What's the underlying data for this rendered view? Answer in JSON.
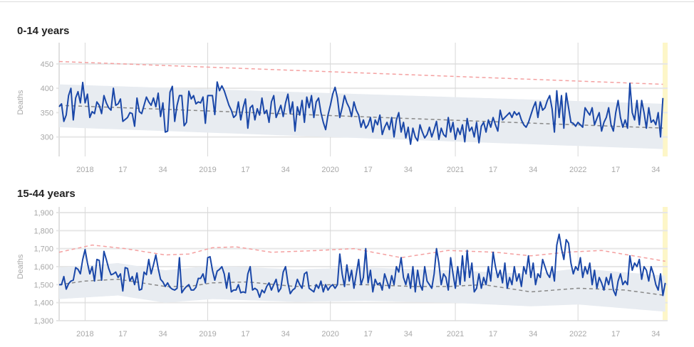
{
  "x_ticks": [
    {
      "week": 11,
      "label": "2018"
    },
    {
      "week": 27,
      "label": "17"
    },
    {
      "week": 44,
      "label": "34"
    },
    {
      "week": 63,
      "label": "2019"
    },
    {
      "week": 79,
      "label": "17"
    },
    {
      "week": 96,
      "label": "34"
    },
    {
      "week": 115,
      "label": "2020"
    },
    {
      "week": 131,
      "label": "17"
    },
    {
      "week": 148,
      "label": "34"
    },
    {
      "week": 168,
      "label": "2021"
    },
    {
      "week": 184,
      "label": "17"
    },
    {
      "week": 201,
      "label": "34"
    },
    {
      "week": 220,
      "label": "2022"
    },
    {
      "week": 236,
      "label": "17"
    },
    {
      "week": 253,
      "label": "34"
    }
  ],
  "colors": {
    "observed": "#1a47a8",
    "baseline": "#888888",
    "threshold": "#f4a0a0",
    "band": "#e8ecf1",
    "highlight": "#fdf6c8"
  },
  "chart_data": [
    {
      "type": "line",
      "title": "0-14 years",
      "ylabel": "Deaths",
      "ylim": [
        260,
        482
      ],
      "yticks": [
        {
          "v": 300,
          "label": "300"
        },
        {
          "v": 350,
          "label": "350"
        },
        {
          "v": 400,
          "label": "400"
        },
        {
          "v": 450,
          "label": "450"
        }
      ],
      "baseline": [
        [
          0,
          365
        ],
        [
          257,
          318
        ]
      ],
      "threshold": [
        [
          0,
          455
        ],
        [
          257,
          408
        ]
      ],
      "band_upper": [
        [
          0,
          408
        ],
        [
          257,
          368
        ]
      ],
      "band_lower": [
        [
          0,
          320
        ],
        [
          257,
          275
        ]
      ],
      "observed": [
        362,
        368,
        332,
        345,
        385,
        400,
        335,
        380,
        393,
        370,
        412,
        370,
        388,
        340,
        352,
        348,
        372,
        365,
        348,
        385,
        370,
        360,
        355,
        400,
        365,
        368,
        378,
        332,
        336,
        340,
        350,
        348,
        322,
        380,
        352,
        348,
        365,
        382,
        372,
        365,
        380,
        362,
        390,
        342,
        370,
        310,
        312,
        392,
        404,
        332,
        365,
        385,
        385,
        323,
        330,
        394,
        378,
        385,
        368,
        372,
        370,
        382,
        328,
        385,
        385,
        385,
        346,
        413,
        395,
        405,
        395,
        380,
        365,
        355,
        340,
        345,
        372,
        335,
        360,
        378,
        318,
        360,
        365,
        335,
        358,
        345,
        380,
        348,
        355,
        330,
        372,
        385,
        340,
        352,
        365,
        342,
        370,
        388,
        348,
        372,
        312,
        362,
        345,
        375,
        330,
        382,
        360,
        385,
        340,
        372,
        380,
        350,
        330,
        315,
        345,
        365,
        388,
        402,
        380,
        340,
        360,
        385,
        370,
        360,
        342,
        372,
        355,
        345,
        320,
        335,
        318,
        325,
        340,
        310,
        335,
        325,
        345,
        305,
        320,
        330,
        315,
        340,
        300,
        335,
        350,
        310,
        330,
        298,
        320,
        285,
        318,
        300,
        292,
        325,
        310,
        298,
        305,
        320,
        300,
        315,
        332,
        295,
        318,
        305,
        300,
        340,
        310,
        330,
        295,
        318,
        305,
        325,
        290,
        338,
        312,
        320,
        300,
        330,
        288,
        322,
        330,
        310,
        335,
        320,
        340,
        325,
        312,
        355,
        335,
        340,
        345,
        350,
        340,
        352,
        345,
        350,
        335,
        325,
        320,
        330,
        345,
        360,
        372,
        340,
        372,
        355,
        360,
        375,
        385,
        358,
        310,
        395,
        340,
        385,
        318,
        390,
        360,
        330,
        328,
        322,
        330,
        325,
        320,
        360,
        352,
        345,
        360,
        325,
        338,
        350,
        312,
        330,
        340,
        360,
        325,
        312,
        350,
        375,
        340,
        320,
        335,
        318,
        410,
        350,
        335,
        375,
        325,
        375,
        350,
        318,
        360,
        330,
        335,
        325,
        350,
        300,
        380
      ]
    },
    {
      "type": "line",
      "title": "15-44 years",
      "ylabel": "Deaths",
      "ylim": [
        1300,
        1900
      ],
      "yticks": [
        {
          "v": 1300,
          "label": "1,300"
        },
        {
          "v": 1400,
          "label": "1,400"
        },
        {
          "v": 1500,
          "label": "1,500"
        },
        {
          "v": 1600,
          "label": "1,600"
        },
        {
          "v": 1700,
          "label": "1,700"
        },
        {
          "v": 1800,
          "label": "1,800"
        },
        {
          "v": 1900,
          "label": "1,900"
        }
      ],
      "baseline": [
        [
          0,
          1500
        ],
        [
          11,
          1520
        ],
        [
          25,
          1530
        ],
        [
          45,
          1490
        ],
        [
          55,
          1490
        ],
        [
          65,
          1510
        ],
        [
          80,
          1515
        ],
        [
          100,
          1490
        ],
        [
          115,
          1500
        ],
        [
          130,
          1500
        ],
        [
          150,
          1490
        ],
        [
          165,
          1490
        ],
        [
          180,
          1500
        ],
        [
          200,
          1460
        ],
        [
          220,
          1480
        ],
        [
          240,
          1470
        ],
        [
          257,
          1440
        ]
      ],
      "threshold": [
        [
          0,
          1680
        ],
        [
          14,
          1720
        ],
        [
          28,
          1700
        ],
        [
          45,
          1665
        ],
        [
          55,
          1670
        ],
        [
          65,
          1705
        ],
        [
          75,
          1710
        ],
        [
          90,
          1680
        ],
        [
          110,
          1690
        ],
        [
          125,
          1700
        ],
        [
          145,
          1650
        ],
        [
          165,
          1690
        ],
        [
          185,
          1680
        ],
        [
          200,
          1660
        ],
        [
          215,
          1680
        ],
        [
          230,
          1690
        ],
        [
          257,
          1630
        ]
      ],
      "band_upper": [
        [
          0,
          1595
        ],
        [
          25,
          1620
        ],
        [
          45,
          1580
        ],
        [
          65,
          1605
        ],
        [
          100,
          1585
        ],
        [
          130,
          1595
        ],
        [
          165,
          1580
        ],
        [
          200,
          1560
        ],
        [
          220,
          1590
        ],
        [
          257,
          1550
        ]
      ],
      "band_lower": [
        [
          0,
          1420
        ],
        [
          25,
          1440
        ],
        [
          45,
          1400
        ],
        [
          65,
          1420
        ],
        [
          100,
          1405
        ],
        [
          130,
          1410
        ],
        [
          165,
          1400
        ],
        [
          200,
          1380
        ],
        [
          220,
          1390
        ],
        [
          257,
          1350
        ]
      ],
      "observed": [
        1500,
        1500,
        1545,
        1475,
        1505,
        1520,
        1525,
        1595,
        1585,
        1560,
        1640,
        1695,
        1620,
        1560,
        1600,
        1520,
        1640,
        1635,
        1525,
        1685,
        1640,
        1590,
        1555,
        1560,
        1570,
        1540,
        1560,
        1465,
        1595,
        1590,
        1520,
        1545,
        1500,
        1565,
        1470,
        1475,
        1570,
        1555,
        1640,
        1560,
        1610,
        1665,
        1590,
        1530,
        1515,
        1490,
        1510,
        1485,
        1475,
        1470,
        1480,
        1650,
        1455,
        1475,
        1490,
        1500,
        1470,
        1470,
        1485,
        1535,
        1535,
        1560,
        1510,
        1650,
        1655,
        1580,
        1525,
        1575,
        1585,
        1600,
        1560,
        1480,
        1565,
        1460,
        1470,
        1470,
        1500,
        1455,
        1460,
        1455,
        1560,
        1600,
        1470,
        1480,
        1470,
        1430,
        1470,
        1455,
        1490,
        1510,
        1470,
        1500,
        1530,
        1460,
        1480,
        1570,
        1600,
        1510,
        1450,
        1470,
        1480,
        1530,
        1500,
        1480,
        1560,
        1570,
        1480,
        1470,
        1460,
        1500,
        1480,
        1520,
        1460,
        1500,
        1470,
        1490,
        1500,
        1480,
        1500,
        1670,
        1560,
        1490,
        1610,
        1520,
        1580,
        1480,
        1560,
        1640,
        1500,
        1540,
        1700,
        1510,
        1580,
        1460,
        1530,
        1500,
        1510,
        1470,
        1560,
        1520,
        1480,
        1550,
        1500,
        1600,
        1570,
        1650,
        1540,
        1500,
        1560,
        1480,
        1600,
        1460,
        1580,
        1500,
        1470,
        1600,
        1520,
        1500,
        1480,
        1560,
        1700,
        1620,
        1500,
        1560,
        1540,
        1470,
        1650,
        1560,
        1480,
        1600,
        1500,
        1660,
        1520,
        1690,
        1540,
        1620,
        1460,
        1480,
        1560,
        1480,
        1540,
        1500,
        1600,
        1520,
        1680,
        1600,
        1540,
        1580,
        1510,
        1620,
        1480,
        1540,
        1500,
        1600,
        1520,
        1560,
        1490,
        1600,
        1560,
        1660,
        1540,
        1620,
        1500,
        1560,
        1540,
        1640,
        1600,
        1560,
        1540,
        1600,
        1520,
        1720,
        1780,
        1700,
        1640,
        1750,
        1730,
        1620,
        1560,
        1600,
        1580,
        1650,
        1540,
        1600,
        1560,
        1620,
        1500,
        1580,
        1480,
        1540,
        1510,
        1470,
        1540,
        1500,
        1560,
        1470,
        1440,
        1520,
        1560,
        1500,
        1520,
        1500,
        1660,
        1580,
        1620,
        1600,
        1640,
        1530,
        1600,
        1580,
        1520,
        1600,
        1560,
        1500,
        1470,
        1560,
        1440,
        1510
      ]
    }
  ]
}
